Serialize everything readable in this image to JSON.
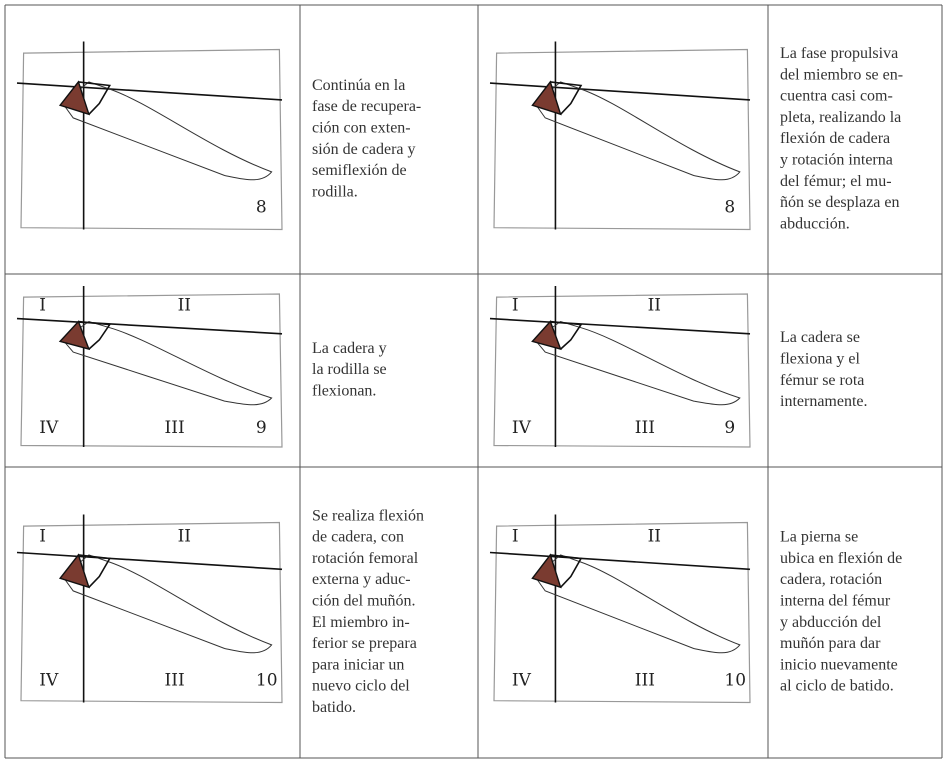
{
  "table": {
    "rows": [
      {
        "cells": [
          {
            "sketch": {
              "frame": "8"
            }
          },
          {
            "lines": [
              "Continúa en la",
              "fase de recupera-",
              "ción con exten-",
              "sión de cadera y",
              "semiflexión de",
              "rodilla."
            ]
          },
          {
            "sketch": {
              "frame": "8"
            }
          },
          {
            "lines": [
              "La fase propulsiva",
              "del miembro se en-",
              "cuentra casi com-",
              "pleta, realizando la",
              "flexión de cadera",
              "y  rotación interna",
              "del fémur; el mu-",
              "ñón se desplaza en",
              "abducción."
            ]
          }
        ]
      },
      {
        "cells": [
          {
            "sketch": {
              "frame": "9",
              "quadrants": [
                "I",
                "II",
                "IV",
                "III"
              ]
            }
          },
          {
            "lines": [
              "La cadera y",
              "la rodilla se",
              "flexionan."
            ]
          },
          {
            "sketch": {
              "frame": "9",
              "quadrants": [
                "I",
                "II",
                "IV",
                "III"
              ]
            }
          },
          {
            "lines": [
              "La cadera se",
              "flexiona y el",
              "fémur se rota",
              "internamente."
            ]
          }
        ]
      },
      {
        "cells": [
          {
            "sketch": {
              "frame": "10",
              "quadrants": [
                "I",
                "II",
                "IV",
                "III"
              ]
            }
          },
          {
            "lines": [
              "Se realiza flexión",
              "de cadera, con",
              "rotación femoral",
              "externa y aduc-",
              "ción del muñón.",
              "El miembro in-",
              "ferior se prepara",
              "para iniciar un",
              "nuevo ciclo del",
              "batido."
            ]
          },
          {
            "sketch": {
              "frame": "10",
              "quadrants": [
                "I",
                "II",
                "IV",
                "III"
              ]
            }
          },
          {
            "lines": [
              "La pierna se",
              "ubica en flexión de",
              "cadera, rotación",
              "interna del fémur",
              "y abducción del",
              "muñón para dar",
              "inicio nuevamente",
              "al ciclo de batido."
            ]
          }
        ]
      }
    ]
  }
}
